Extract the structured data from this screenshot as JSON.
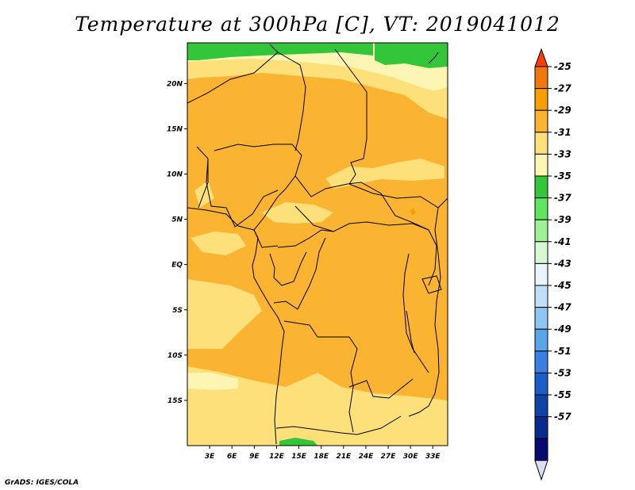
{
  "title": "Temperature at 300hPa [C], VT: 2019041012",
  "footer": "GrADS: IGES/COLA",
  "map": {
    "lat_ticks": [
      "20N",
      "15N",
      "10N",
      "5N",
      "EQ",
      "5S",
      "10S",
      "15S"
    ],
    "lon_ticks": [
      "3E",
      "6E",
      "9E",
      "12E",
      "15E",
      "18E",
      "21E",
      "24E",
      "27E",
      "30E",
      "33E"
    ],
    "lon_range": [
      0,
      35
    ],
    "lat_range": [
      -20,
      24.5
    ]
  },
  "colorbar": {
    "labels": [
      "-25",
      "-27",
      "-29",
      "-31",
      "-33",
      "-35",
      "-37",
      "-39",
      "-41",
      "-43",
      "-45",
      "-47",
      "-49",
      "-51",
      "-53",
      "-55",
      "-57"
    ],
    "colors": [
      "#fa3c0a",
      "#f0780f",
      "#f5a000",
      "#fab432",
      "#fde07a",
      "#fdf5b4",
      "#33c63a",
      "#62e461",
      "#a0f09a",
      "#d8f8d3",
      "#e9f4fb",
      "#bfe0f8",
      "#8ec6f1",
      "#5aa4e8",
      "#3a80e0",
      "#1c5ec8",
      "#1043a8",
      "#0a2a90",
      "#070a6e",
      "#dcdcf5"
    ]
  }
}
